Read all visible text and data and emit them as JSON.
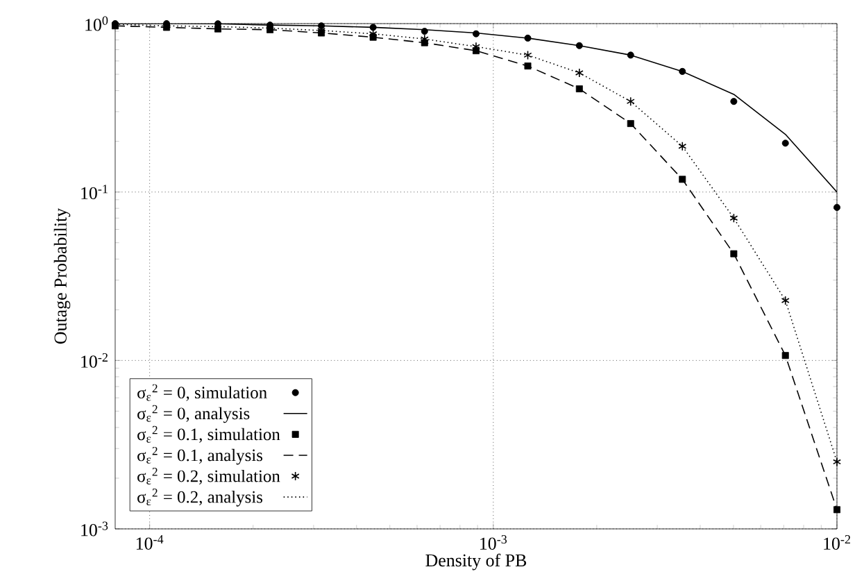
{
  "chart_data": {
    "type": "line",
    "xlabel": "Density of PB",
    "ylabel": "Outage Probability",
    "log": "xy",
    "grid": true,
    "legend": "bottom left",
    "xlim": [
      7.94e-05,
      0.01
    ],
    "ylim": [
      0.001,
      1
    ],
    "xticks": [
      {
        "value": 0.0001,
        "label": "10$^{-4}$"
      },
      {
        "value": 0.001,
        "label": "10$^{-3}$"
      },
      {
        "value": 0.01,
        "label": "10$^{-2}$"
      }
    ],
    "yticks": [
      {
        "value": 0.001,
        "label": "10$^{-3}$"
      },
      {
        "value": 0.01,
        "label": "10$^{-2}$"
      },
      {
        "value": 0.1,
        "label": "10$^{-1}$"
      },
      {
        "value": 1,
        "label": "10$^{0}$"
      }
    ],
    "x": [
      7.94e-05,
      0.000112,
      0.000158,
      0.000224,
      0.000316,
      0.000447,
      0.000631,
      0.000891,
      0.00126,
      0.00178,
      0.00251,
      0.00355,
      0.00501,
      0.00708,
      0.01
    ],
    "series": [
      {
        "name": "σ$_{ε}$$^{2}$ = 0, simulation",
        "type": "scatter",
        "marker": "circle",
        "color": "#000000",
        "values": [
          1.0,
          1.0,
          0.998,
          0.98,
          0.97,
          0.95,
          0.9,
          0.87,
          0.82,
          0.74,
          0.65,
          0.52,
          0.345,
          0.195,
          0.081
        ]
      },
      {
        "name": "σ$_{ε}$$^{2}$ = 0, analysis",
        "marker": "none",
        "line_style": "solid",
        "color": "#000000",
        "values": [
          1.0,
          1.0,
          0.998,
          0.98,
          0.97,
          0.95,
          0.92,
          0.88,
          0.82,
          0.74,
          0.65,
          0.52,
          0.38,
          0.22,
          0.1
        ]
      },
      {
        "name": "σ$_{ε}$$^{2}$ = 0.1, simulation",
        "type": "scatter",
        "marker": "square",
        "color": "#000000",
        "values": [
          0.97,
          0.95,
          0.93,
          0.92,
          0.88,
          0.83,
          0.77,
          0.69,
          0.56,
          0.41,
          0.255,
          0.119,
          0.043,
          0.0107,
          0.0013
        ]
      },
      {
        "name": "σ$_{ε}$$^{2}$ = 0.1, analysis",
        "marker": "none",
        "line_style": "dashed",
        "color": "#000000",
        "values": [
          0.97,
          0.95,
          0.93,
          0.92,
          0.88,
          0.83,
          0.77,
          0.69,
          0.56,
          0.41,
          0.255,
          0.119,
          0.043,
          0.0107,
          0.0013
        ]
      },
      {
        "name": "σ$_{ε}$$^{2}$ = 0.2, simulation",
        "type": "scatter",
        "marker": "cross",
        "color": "#000000",
        "values": [
          null,
          null,
          null,
          null,
          0.91,
          0.87,
          0.81,
          0.73,
          0.65,
          0.51,
          0.345,
          0.187,
          0.07,
          0.0227,
          0.0025
        ]
      },
      {
        "name": "σ$_{ε}$$^{2}$ = 0.2, analysis",
        "marker": "none",
        "line_style": "dotted",
        "color": "#000000",
        "values": [
          0.99,
          0.97,
          0.96,
          0.94,
          0.91,
          0.87,
          0.81,
          0.73,
          0.65,
          0.51,
          0.345,
          0.187,
          0.07,
          0.0227,
          0.0025
        ]
      }
    ]
  }
}
